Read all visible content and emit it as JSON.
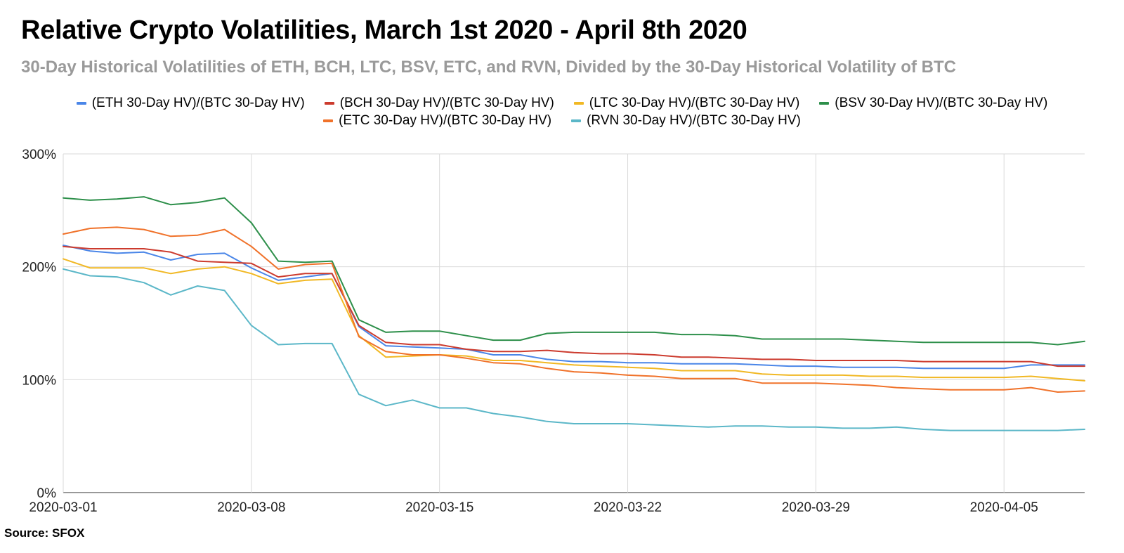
{
  "title": "Relative Crypto Volatilities, March 1st 2020 - April 8th 2020",
  "subtitle": "30-Day Historical Volatilities of ETH, BCH, LTC, BSV, ETC, and RVN, Divided by the 30-Day Historical Volatility of BTC",
  "source": "Source: SFOX",
  "chart_data": {
    "type": "line",
    "title": "Relative Crypto Volatilities, March 1st 2020 - April 8th 2020",
    "ylim": [
      0,
      300
    ],
    "yticks": [
      0,
      100,
      200,
      300
    ],
    "ytick_labels": [
      "0%",
      "100%",
      "200%",
      "300%"
    ],
    "xticks": [
      "2020-03-01",
      "2020-03-08",
      "2020-03-15",
      "2020-03-22",
      "2020-03-29",
      "2020-04-05"
    ],
    "grid": true,
    "legend_position": "top",
    "x": [
      "2020-03-01",
      "2020-03-02",
      "2020-03-03",
      "2020-03-04",
      "2020-03-05",
      "2020-03-06",
      "2020-03-07",
      "2020-03-08",
      "2020-03-09",
      "2020-03-10",
      "2020-03-11",
      "2020-03-12",
      "2020-03-13",
      "2020-03-14",
      "2020-03-15",
      "2020-03-16",
      "2020-03-17",
      "2020-03-18",
      "2020-03-19",
      "2020-03-20",
      "2020-03-21",
      "2020-03-22",
      "2020-03-23",
      "2020-03-24",
      "2020-03-25",
      "2020-03-26",
      "2020-03-27",
      "2020-03-28",
      "2020-03-29",
      "2020-03-30",
      "2020-03-31",
      "2020-04-01",
      "2020-04-02",
      "2020-04-03",
      "2020-04-04",
      "2020-04-05",
      "2020-04-06",
      "2020-04-07",
      "2020-04-08"
    ],
    "series": [
      {
        "name": "(ETH 30-Day HV)/(BTC 30-Day HV)",
        "color": "#4a86e8",
        "values": [
          219,
          214,
          212,
          213,
          206,
          211,
          212,
          199,
          188,
          191,
          194,
          147,
          130,
          129,
          128,
          127,
          122,
          122,
          118,
          116,
          116,
          115,
          115,
          114,
          114,
          114,
          113,
          112,
          112,
          111,
          111,
          111,
          110,
          110,
          110,
          110,
          113,
          113,
          113
        ]
      },
      {
        "name": "(BCH 30-Day HV)/(BTC 30-Day HV)",
        "color": "#cc3b2e",
        "values": [
          218,
          216,
          216,
          216,
          213,
          205,
          204,
          203,
          191,
          194,
          194,
          148,
          133,
          131,
          131,
          127,
          125,
          125,
          126,
          124,
          123,
          123,
          122,
          120,
          120,
          119,
          118,
          118,
          117,
          117,
          117,
          117,
          116,
          116,
          116,
          116,
          116,
          112,
          112
        ]
      },
      {
        "name": "(LTC 30-Day HV)/(BTC 30-Day HV)",
        "color": "#f1b824",
        "values": [
          207,
          199,
          199,
          199,
          194,
          198,
          200,
          194,
          185,
          188,
          189,
          139,
          120,
          121,
          122,
          121,
          117,
          117,
          115,
          113,
          112,
          111,
          110,
          108,
          108,
          108,
          105,
          104,
          104,
          104,
          103,
          103,
          102,
          102,
          102,
          102,
          103,
          101,
          99
        ]
      },
      {
        "name": "(BSV 30-Day HV)/(BTC 30-Day HV)",
        "color": "#2d8f4a",
        "values": [
          261,
          259,
          260,
          262,
          255,
          257,
          261,
          239,
          205,
          204,
          205,
          153,
          142,
          143,
          143,
          139,
          135,
          135,
          141,
          142,
          142,
          142,
          142,
          140,
          140,
          139,
          136,
          136,
          136,
          136,
          135,
          134,
          133,
          133,
          133,
          133,
          133,
          131,
          134
        ]
      },
      {
        "name": "(ETC 30-Day HV)/(BTC 30-Day HV)",
        "color": "#f0722a",
        "values": [
          229,
          234,
          235,
          233,
          227,
          228,
          233,
          218,
          198,
          202,
          203,
          138,
          125,
          122,
          122,
          119,
          115,
          114,
          110,
          107,
          106,
          104,
          103,
          101,
          101,
          101,
          97,
          97,
          97,
          96,
          95,
          93,
          92,
          91,
          91,
          91,
          93,
          89,
          90
        ]
      },
      {
        "name": "(RVN 30-Day HV)/(BTC 30-Day HV)",
        "color": "#5bb7c8",
        "values": [
          198,
          192,
          191,
          186,
          175,
          183,
          179,
          148,
          131,
          132,
          132,
          87,
          77,
          82,
          75,
          75,
          70,
          67,
          63,
          61,
          61,
          61,
          60,
          59,
          58,
          59,
          59,
          58,
          58,
          57,
          57,
          58,
          56,
          55,
          55,
          55,
          55,
          55,
          56
        ]
      }
    ]
  }
}
